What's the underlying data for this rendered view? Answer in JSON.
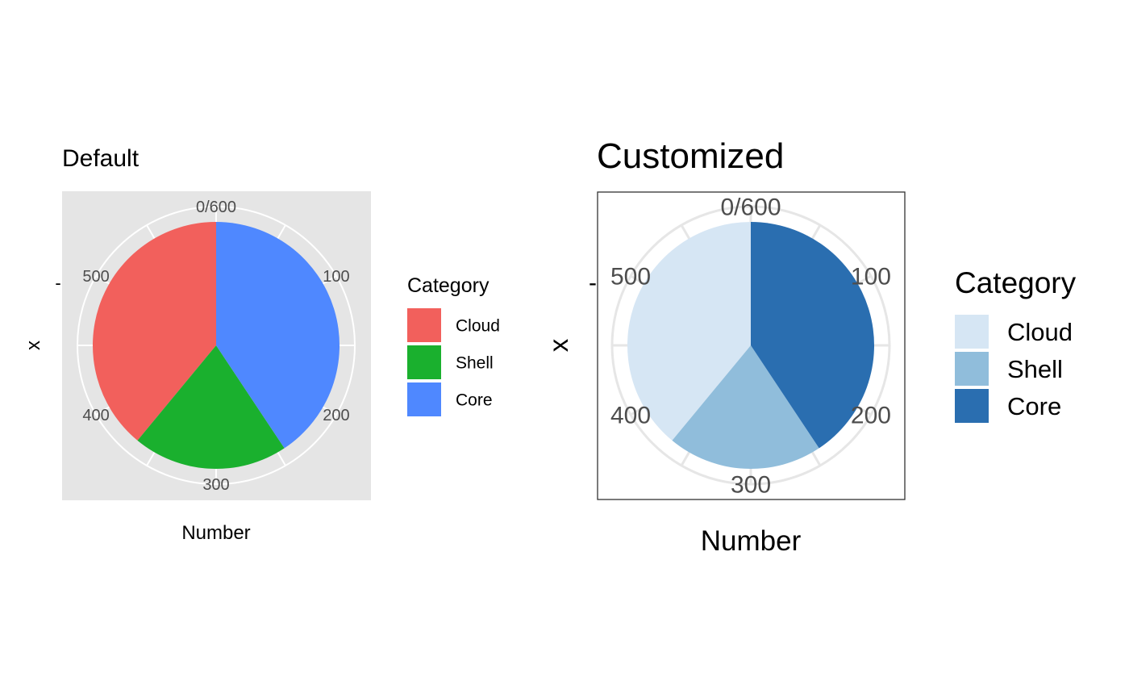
{
  "chart_data": [
    {
      "type": "pie",
      "title": "Default",
      "xlabel": "Number",
      "ylabel": "x",
      "categories": [
        "Cloud",
        "Shell",
        "Core"
      ],
      "values": [
        234,
        122,
        244
      ],
      "colors": [
        "#F2605C",
        "#1AB02E",
        "#4F88FF"
      ],
      "total": 600,
      "theta_ticks": [
        "0/600",
        "100",
        "200",
        "300",
        "400",
        "500"
      ],
      "y_tick": "-",
      "legend": {
        "title": "Category",
        "position": "right"
      },
      "panel_background": "#E5E5E5",
      "grid_color": "#FFFFFF",
      "grid": true
    },
    {
      "type": "pie",
      "title": "Customized",
      "xlabel": "Number",
      "ylabel": "x",
      "categories": [
        "Cloud",
        "Shell",
        "Core"
      ],
      "values": [
        234,
        122,
        244
      ],
      "colors": [
        "#D6E6F4",
        "#90BDDB",
        "#2A6EB0"
      ],
      "total": 600,
      "theta_ticks": [
        "0/600",
        "100",
        "200",
        "300",
        "400",
        "500"
      ],
      "y_tick": "-",
      "legend": {
        "title": "Category",
        "position": "right"
      },
      "panel_background": "#FFFFFF",
      "grid_color": "#E6E6E6",
      "grid": true
    }
  ]
}
